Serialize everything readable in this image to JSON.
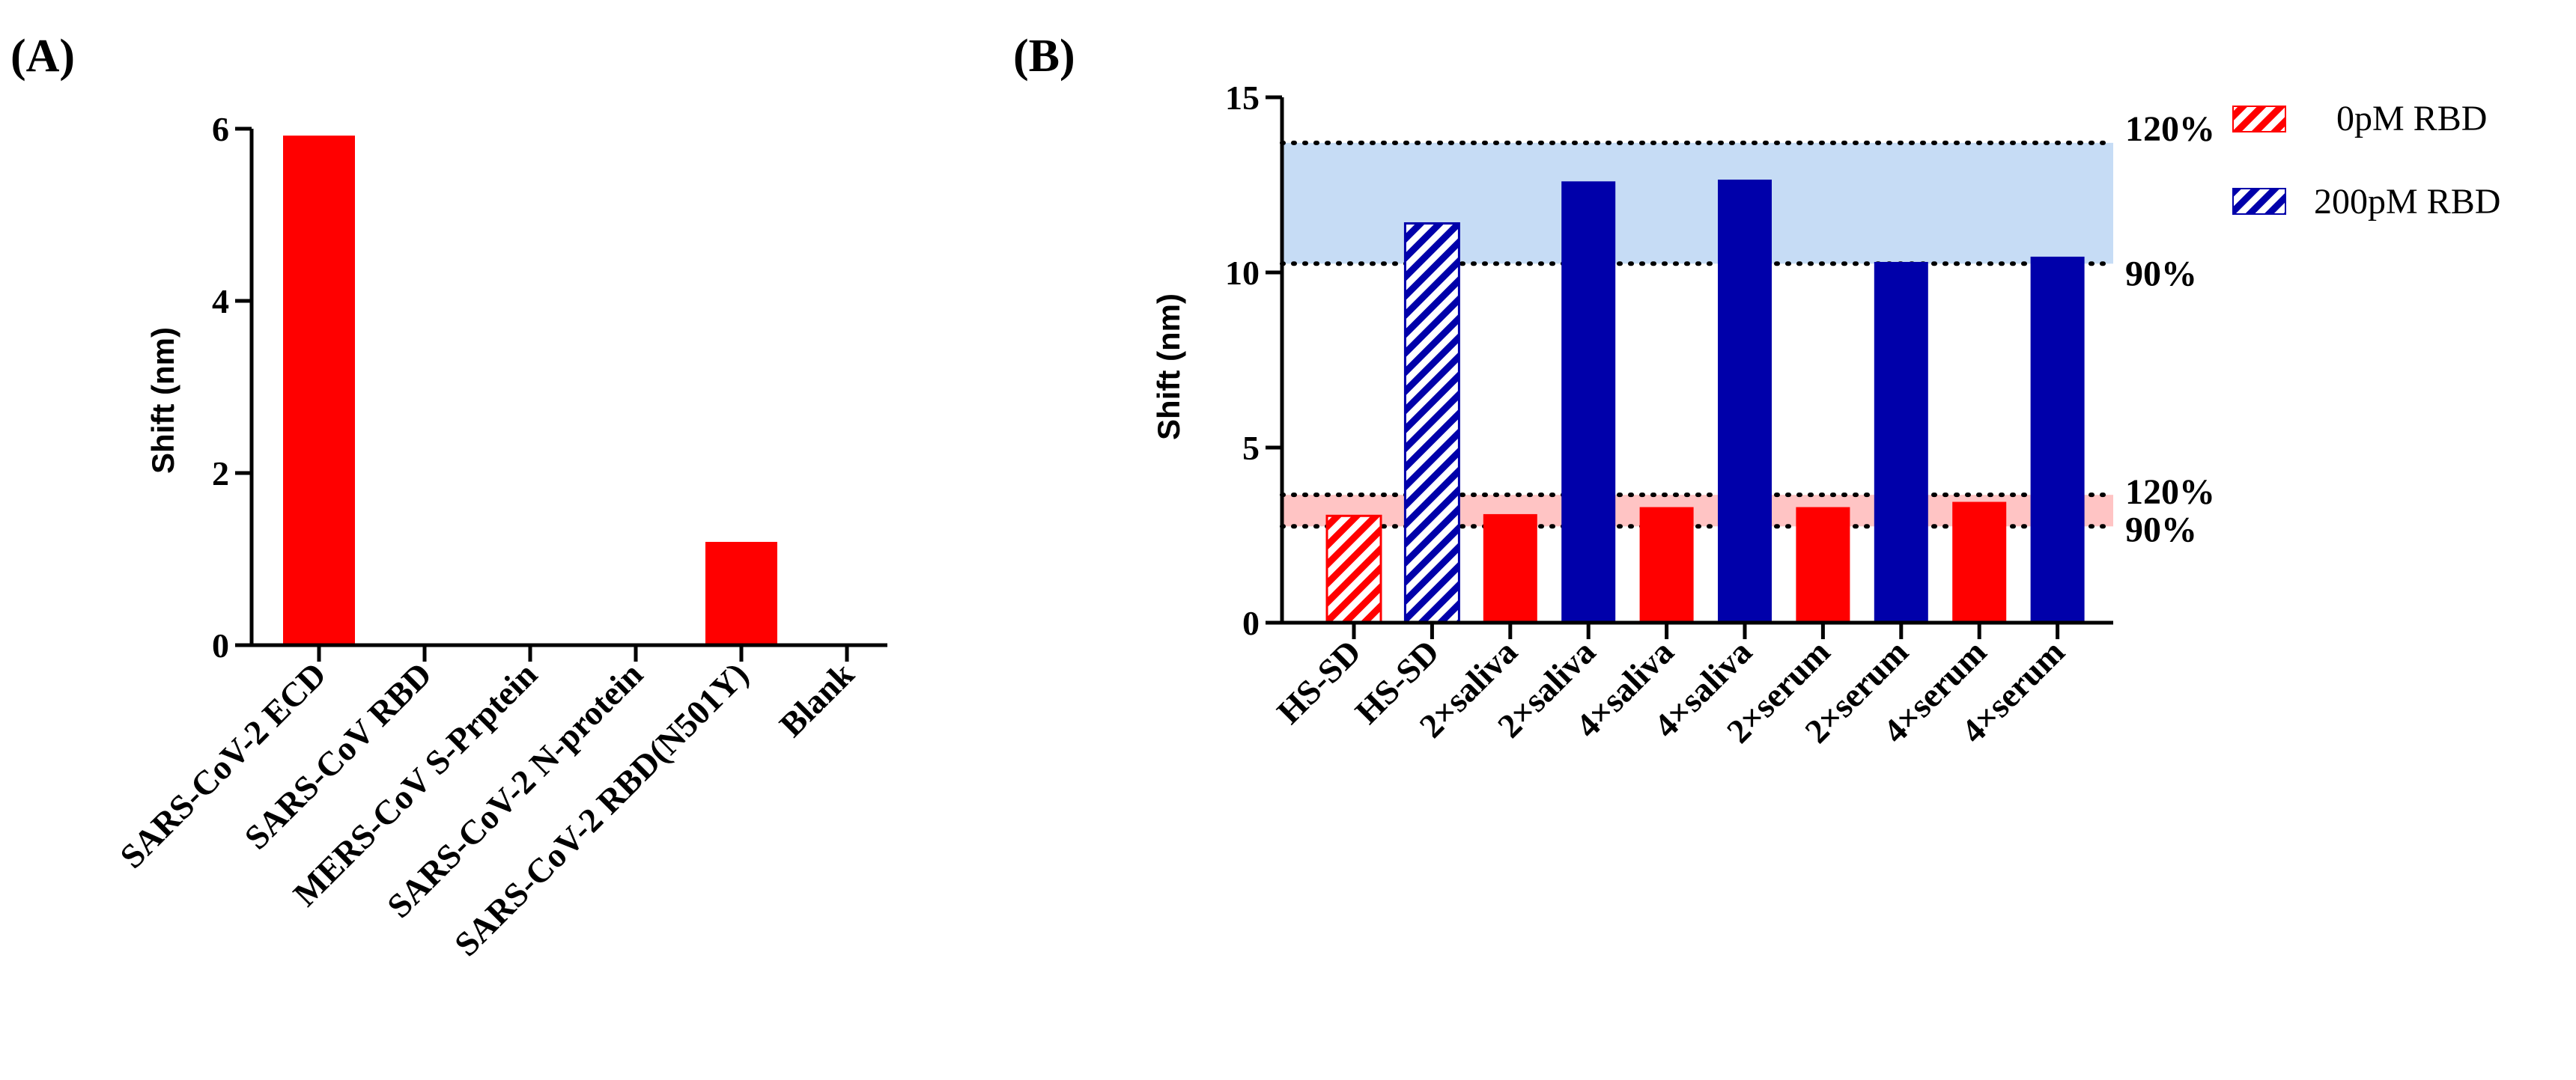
{
  "chart_data": [
    {
      "panel": "(A)",
      "type": "bar",
      "ylabel": "Shift (nm)",
      "ylim": [
        0,
        6
      ],
      "yticks": [
        0,
        2,
        4,
        6
      ],
      "categories": [
        "SARS-CoV-2 ECD",
        "SARS-CoV RBD",
        "MERS-CoV S-Prptein",
        "SARS-CoV-2 N-protein",
        "SARS-CoV-2 RBD(N501Y)",
        "Blank"
      ],
      "values": [
        5.92,
        0,
        0,
        0,
        1.2,
        0
      ],
      "color": "#ff0000"
    },
    {
      "panel": "(B)",
      "type": "bar",
      "ylabel": "Shift (nm)",
      "ylim": [
        0,
        15
      ],
      "yticks": [
        0,
        5,
        10,
        15
      ],
      "categories": [
        "HS-SD",
        "HS-SD",
        "2×saliva",
        "2×saliva",
        "4×saliva",
        "4×saliva",
        "2×serum",
        "2×serum",
        "4×serum",
        "4×serum"
      ],
      "values": [
        3.05,
        11.4,
        3.1,
        12.6,
        3.3,
        12.65,
        3.3,
        10.3,
        3.45,
        10.45
      ],
      "series_index": [
        0,
        1,
        0,
        1,
        0,
        1,
        0,
        1,
        0,
        1
      ],
      "hatched": [
        true,
        true,
        false,
        false,
        false,
        false,
        false,
        false,
        false,
        false
      ],
      "series": [
        {
          "name": "0pM RBD",
          "color": "#ff0000"
        },
        {
          "name": "200pM RBD",
          "color": "#0000aa"
        }
      ],
      "bands": [
        {
          "low": 2.75,
          "high": 3.65,
          "color": "#ffc4c4",
          "low_label": "90%",
          "high_label": "120%"
        },
        {
          "low": 10.25,
          "high": 13.7,
          "color": "#c6dcf5",
          "low_label": "90%",
          "high_label": "120%"
        }
      ]
    }
  ]
}
